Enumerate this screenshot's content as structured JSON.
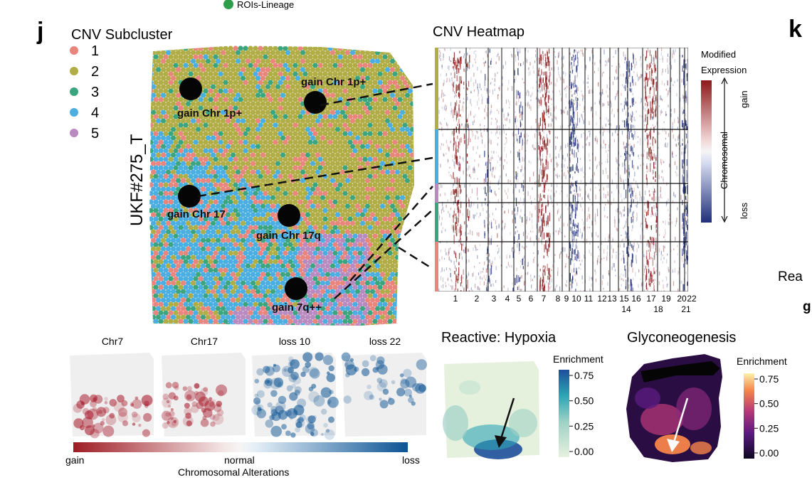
{
  "panels": {
    "j_label": "j",
    "k_label": "k",
    "top_legend_item": "ROIs-Lineage",
    "right_cut_text_1": "Rea",
    "right_cut_text_2": "g"
  },
  "subcluster": {
    "title": "CNV Subcluster",
    "ylabel": "UKF#275_T",
    "legend": [
      {
        "label": "1",
        "color": "#e8857c"
      },
      {
        "label": "2",
        "color": "#b0ad46"
      },
      {
        "label": "3",
        "color": "#3aa57f"
      },
      {
        "label": "4",
        "color": "#4aaee0"
      },
      {
        "label": "5",
        "color": "#b98ac0"
      }
    ],
    "rois": [
      {
        "label": "gain Chr 1p+"
      },
      {
        "label": "gain Chr 1p+"
      },
      {
        "label": "gain Chr 17"
      },
      {
        "label": "gain Chr 17q"
      },
      {
        "label": "gain 7q++"
      }
    ]
  },
  "heatmap": {
    "title": "CNV Heatmap",
    "legend_title_1": "Modified",
    "legend_title_2": "Expression",
    "axis_label": "Chromosomal",
    "gain_label": "gain",
    "loss_label": "loss",
    "gain_color": "#8b1a1a",
    "loss_color": "#1f2f7a",
    "row_groups": [
      {
        "cluster": "2",
        "color": "#b0ad46"
      },
      {
        "cluster": "4",
        "color": "#4aaee0"
      },
      {
        "cluster": "5",
        "color": "#b98ac0"
      },
      {
        "cluster": "3",
        "color": "#3aa57f"
      },
      {
        "cluster": "1",
        "color": "#e8857c"
      }
    ],
    "chromosome_labels_row1": [
      "1",
      "2",
      "3",
      "4",
      "5",
      "6",
      "7",
      "8",
      "9",
      "10",
      "11",
      "12",
      "13",
      "15",
      "16",
      "17",
      "19",
      "20",
      "22"
    ],
    "chromosome_labels_row2": [
      "14",
      "18",
      "21"
    ]
  },
  "chr_maps": {
    "panels": [
      "Chr7",
      "Chr17",
      "loss 10",
      "loss 22"
    ],
    "colorbar_left": "gain",
    "colorbar_mid": "normal",
    "colorbar_right": "loss",
    "colorbar_title": "Chromosomal Alterations"
  },
  "chart_data": [
    {
      "type": "heatmap",
      "title": "Reactive: Hypoxia",
      "legend_title": "Enrichment",
      "ticks": [
        "0.75",
        "0.50",
        "0.25",
        "0.00"
      ],
      "range": [
        0,
        0.75
      ]
    },
    {
      "type": "heatmap",
      "title": "Glyconeogenesis",
      "legend_title": "Enrichment",
      "ticks": [
        "0.75",
        "0.50",
        "0.25",
        "0.00"
      ],
      "range": [
        0,
        0.75
      ]
    }
  ]
}
